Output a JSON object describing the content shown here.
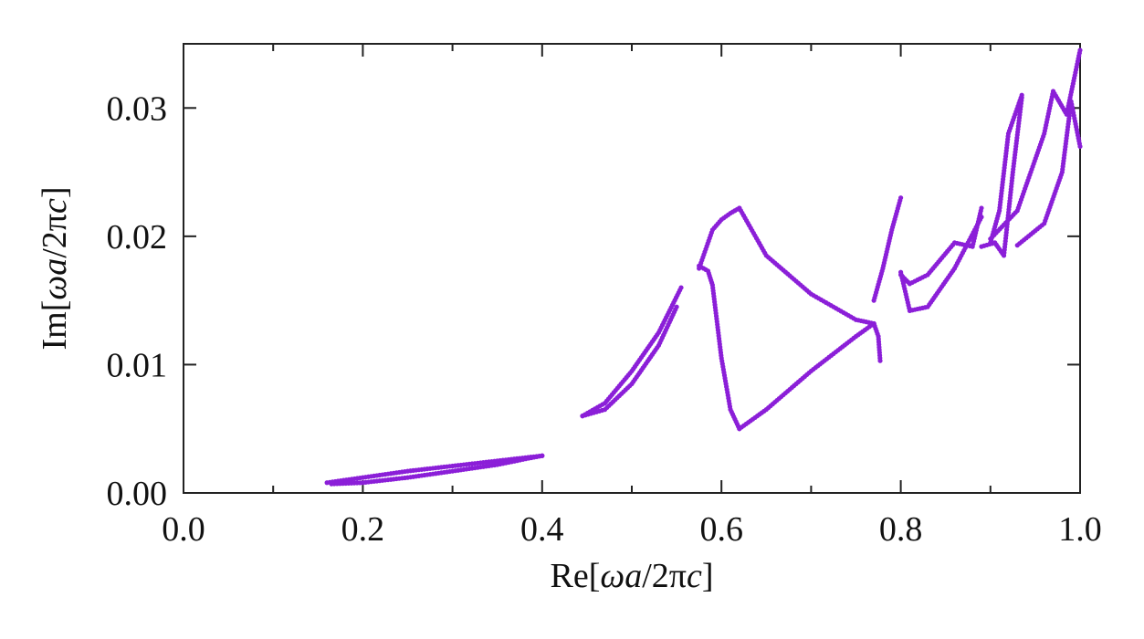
{
  "chart_data": {
    "type": "scatter",
    "title": "",
    "xlabel_parts": {
      "prefix": "Re[",
      "symbol": "ωa",
      "mid": "/2π",
      "symbol2": "c",
      "suffix": "]"
    },
    "ylabel_parts": {
      "prefix": "Im[",
      "symbol": "ωa",
      "mid": "/2π",
      "symbol2": "c",
      "suffix": "]"
    },
    "xlim": [
      0.0,
      1.0
    ],
    "ylim": [
      0.0,
      0.035
    ],
    "x_ticks": [
      0.0,
      0.2,
      0.4,
      0.6,
      0.8,
      1.0
    ],
    "x_tick_labels": [
      "0.0",
      "0.2",
      "0.4",
      "0.6",
      "0.8",
      "1.0"
    ],
    "x_minor_ticks": [
      0.1,
      0.3,
      0.5,
      0.7,
      0.9
    ],
    "y_ticks": [
      0.0,
      0.01,
      0.02,
      0.03
    ],
    "y_tick_labels": [
      "0.00",
      "0.01",
      "0.02",
      "0.03"
    ],
    "color": "#8B1FD8",
    "grid": false,
    "curves": [
      {
        "points": [
          [
            0.16,
            0.0008
          ],
          [
            0.2,
            0.0012
          ],
          [
            0.25,
            0.0017
          ],
          [
            0.3,
            0.0021
          ],
          [
            0.35,
            0.0025
          ],
          [
            0.4,
            0.0029
          ]
        ]
      },
      {
        "points": [
          [
            0.165,
            0.0007
          ],
          [
            0.2,
            0.0008
          ],
          [
            0.25,
            0.0012
          ],
          [
            0.3,
            0.0017
          ],
          [
            0.35,
            0.0022
          ],
          [
            0.385,
            0.0027
          ],
          [
            0.4,
            0.0029
          ]
        ]
      },
      {
        "points": [
          [
            0.445,
            0.006
          ],
          [
            0.47,
            0.0065
          ],
          [
            0.5,
            0.0085
          ],
          [
            0.53,
            0.0115
          ],
          [
            0.55,
            0.0145
          ]
        ]
      },
      {
        "points": [
          [
            0.445,
            0.006
          ],
          [
            0.47,
            0.007
          ],
          [
            0.5,
            0.0095
          ],
          [
            0.53,
            0.0125
          ],
          [
            0.555,
            0.016
          ]
        ]
      },
      {
        "points": [
          [
            0.575,
            0.0175
          ],
          [
            0.59,
            0.0205
          ],
          [
            0.6,
            0.0213
          ],
          [
            0.61,
            0.0218
          ],
          [
            0.62,
            0.0222
          ]
        ]
      },
      {
        "points": [
          [
            0.575,
            0.0177
          ],
          [
            0.585,
            0.0173
          ],
          [
            0.59,
            0.0162
          ],
          [
            0.6,
            0.0105
          ],
          [
            0.61,
            0.0065
          ],
          [
            0.62,
            0.005
          ]
        ]
      },
      {
        "points": [
          [
            0.62,
            0.0222
          ],
          [
            0.65,
            0.0185
          ],
          [
            0.7,
            0.0155
          ],
          [
            0.75,
            0.0135
          ],
          [
            0.77,
            0.0132
          ]
        ]
      },
      {
        "points": [
          [
            0.62,
            0.005
          ],
          [
            0.65,
            0.0065
          ],
          [
            0.7,
            0.0095
          ],
          [
            0.75,
            0.0122
          ],
          [
            0.77,
            0.0132
          ]
        ]
      },
      {
        "points": [
          [
            0.77,
            0.015
          ],
          [
            0.78,
            0.0175
          ],
          [
            0.79,
            0.0205
          ],
          [
            0.8,
            0.023
          ]
        ]
      },
      {
        "points": [
          [
            0.77,
            0.0132
          ],
          [
            0.775,
            0.0122
          ],
          [
            0.777,
            0.0103
          ]
        ]
      },
      {
        "points": [
          [
            0.8,
            0.0172
          ],
          [
            0.81,
            0.0142
          ],
          [
            0.83,
            0.0145
          ],
          [
            0.86,
            0.0175
          ],
          [
            0.89,
            0.0215
          ]
        ]
      },
      {
        "points": [
          [
            0.8,
            0.017
          ],
          [
            0.81,
            0.0163
          ],
          [
            0.83,
            0.017
          ],
          [
            0.86,
            0.0195
          ],
          [
            0.88,
            0.0192
          ],
          [
            0.89,
            0.0222
          ]
        ]
      },
      {
        "points": [
          [
            0.89,
            0.0192
          ],
          [
            0.905,
            0.0195
          ],
          [
            0.915,
            0.0185
          ],
          [
            0.925,
            0.025
          ],
          [
            0.935,
            0.0308
          ]
        ]
      },
      {
        "points": [
          [
            0.9,
            0.0195
          ],
          [
            0.91,
            0.022
          ],
          [
            0.92,
            0.028
          ],
          [
            0.935,
            0.031
          ]
        ]
      },
      {
        "points": [
          [
            0.9,
            0.0198
          ],
          [
            0.93,
            0.022
          ],
          [
            0.96,
            0.028
          ],
          [
            0.97,
            0.0313
          ],
          [
            0.985,
            0.0295
          ],
          [
            1.0,
            0.0345
          ]
        ]
      },
      {
        "points": [
          [
            0.93,
            0.0193
          ],
          [
            0.96,
            0.021
          ],
          [
            0.98,
            0.025
          ],
          [
            0.99,
            0.0305
          ],
          [
            1.0,
            0.027
          ]
        ]
      }
    ]
  }
}
